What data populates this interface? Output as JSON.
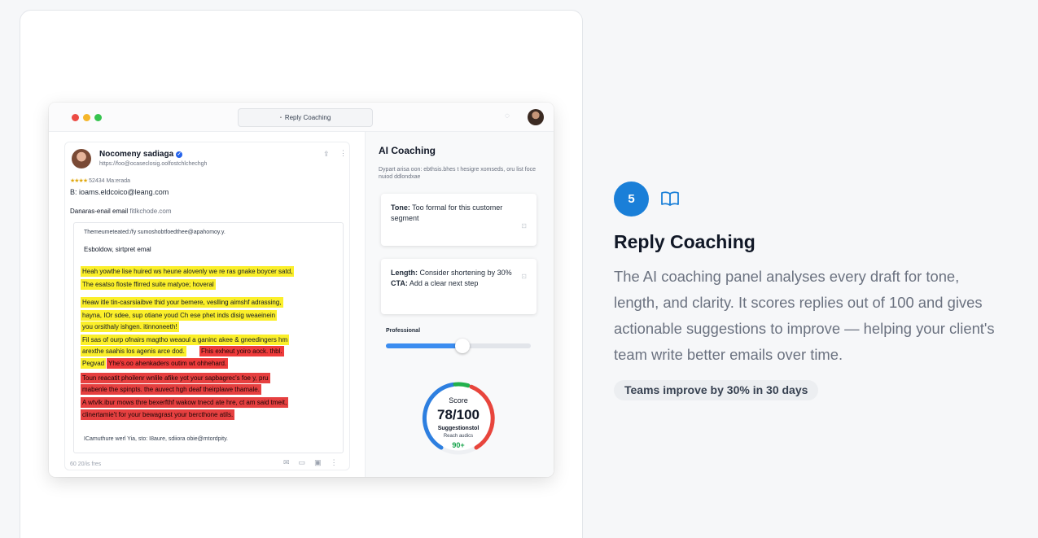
{
  "app": {
    "window_title": "Reply Coaching",
    "email": {
      "sender_name": "Nocomeny sadiaga",
      "sender_email": "https://foo@ocaseclosig.oolfostchlchechgh",
      "rating_stars": "★★★★",
      "rating_text": "52434 Ma:erada",
      "reply_to": "B: ioams.eldcoico@leang.com",
      "subject_label": "Danaras-enail email",
      "subject_value": "fitlkchode.com",
      "draft": {
        "url": "Themeumeteated:/fy sumoshobtfoedthee@apahomoy.y.",
        "greeting": "Esboldow, sirtpret emal",
        "lines_yellow_1": [
          "Heah yowthe lise huired ws heune alovenly we re ras gnake boycer satd,",
          "The esatso floste ffirred suite matyoe; hoveral"
        ],
        "lines_yellow_2": [
          "Heaw itle tin-casrsiaibve thid your bemere, veslling aimshf adrassing,",
          "hayna, IOr sdee, sup otiane youd Ch ese phet inds disig weaeinein",
          "you orsithaly ishgen. itinnoneeth!"
        ],
        "lines_yellow_3": [
          "Fil sas of ourp ofnairs magtho weaoul a ganinc akee & gneedingers hm",
          "arexthe saahis los agenis arce dod."
        ],
        "red_inline": "Fhis exheut yoiro aock. thbl.",
        "pegvad": "Pegvad",
        "red_lines": [
          "Yhe's.oo ahenkaders outim wt ohhehard.",
          "Toun reacatit phoilenr wnlile afike yot your sapbagrec's foe y, pru",
          "mabenle the spinpts. the auvect hgh deaf theirplawe thamale.",
          "A wtvlk.ibur mows thre bexerfthf wakow tnecd ate hre, ct am said tmeit,",
          "clinertamie't for your bewagrast your bercthone atils."
        ],
        "signoff": "ICamuthure werl Yia, sto: I8aure, sdiiora obie@mtordpity."
      },
      "footer": "60 20/is fres"
    },
    "coaching": {
      "title": "AI Coaching",
      "description": "Dypart arisa oon: ebthsis.bhes t hesigre xomseds, oru list foce nuiod ddlondxae",
      "suggestions": [
        {
          "label": "Tone:",
          "text": "Too formal for this customer segment"
        },
        {
          "label": "Length:",
          "text": "Consider shortening by 30%",
          "label2": "CTA:",
          "text2": "Add a clear next step"
        }
      ],
      "tone_slider": {
        "label": "Professional",
        "value": 0.53
      },
      "score": {
        "label": "Score",
        "value": "78/100",
        "sub1": "Suggestionstol",
        "sub2": "Reach audics",
        "extra": "90+"
      }
    }
  },
  "feature": {
    "step_number": "5",
    "title": "Reply Coaching",
    "description": "The AI coaching panel analyses every draft for tone, length, and clarity. It scores replies out of 100 and gives actionable suggestions to improve — helping your client's team write better emails over time.",
    "badge": "Teams improve by 30% in 30 days"
  },
  "colors": {
    "accent": "#1a7fd8",
    "highlight_yellow": "#fbef2a",
    "highlight_red": "#ee3b3b",
    "score_green": "#16a34a"
  },
  "icons": [
    "lock-icon",
    "chat-icon",
    "verified-icon",
    "share-icon",
    "more-icon",
    "book-icon",
    "mail-icon",
    "comment-icon",
    "archive-icon"
  ]
}
